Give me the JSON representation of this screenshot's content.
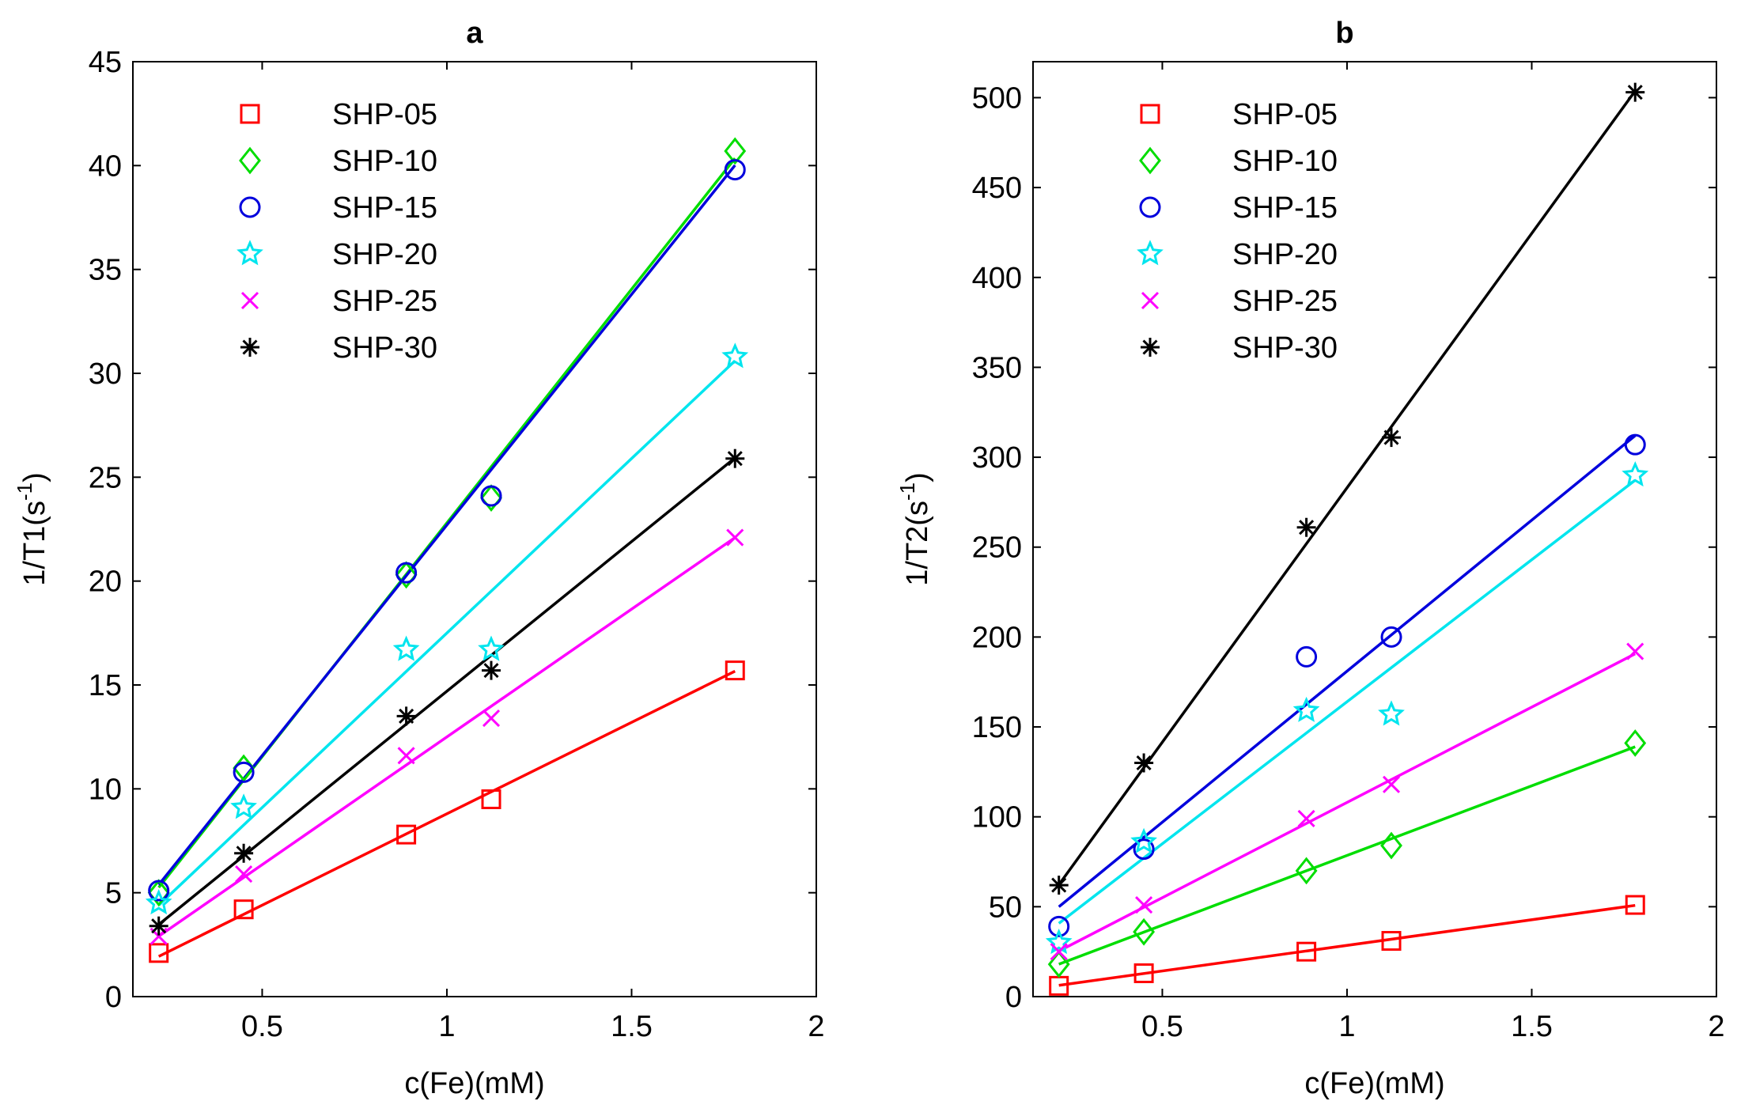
{
  "chart_data": [
    {
      "type": "scatter",
      "panel": "a",
      "title": "a",
      "xlabel": "c(Fe)(mM)",
      "ylabel_main": "1/T1(s",
      "ylabel_sup": "-1",
      "ylabel_end": ")",
      "xlim": [
        0.15,
        2
      ],
      "ylim": [
        0,
        45
      ],
      "xticks": [
        0.5,
        1,
        1.5,
        2
      ],
      "xtick_labels": [
        "0.5",
        "1",
        "1.5",
        "2"
      ],
      "yticks": [
        0,
        5,
        10,
        15,
        20,
        25,
        30,
        35,
        40,
        45
      ],
      "ytick_labels": [
        "0",
        "5",
        "10",
        "15",
        "20",
        "25",
        "30",
        "35",
        "40",
        "45"
      ],
      "legend_position": "top-left",
      "x": [
        0.22,
        0.45,
        0.89,
        1.12,
        1.78
      ],
      "series": [
        {
          "name": "SHP-05",
          "color": "#ff0000",
          "marker": "square",
          "values": [
            2.1,
            4.2,
            7.8,
            9.5,
            15.7
          ],
          "fit": [
            0.0,
            8.8
          ]
        },
        {
          "name": "SHP-10",
          "color": "#00dd00",
          "marker": "diamond",
          "values": [
            5.0,
            11.0,
            20.3,
            24.0,
            40.7
          ],
          "fit": [
            0.3,
            22.5
          ]
        },
        {
          "name": "SHP-15",
          "color": "#0000dd",
          "marker": "circle",
          "values": [
            5.1,
            10.8,
            20.4,
            24.1,
            39.8
          ],
          "fit": [
            0.5,
            22.2
          ]
        },
        {
          "name": "SHP-20",
          "color": "#00e5ee",
          "marker": "star",
          "values": [
            4.5,
            9.1,
            16.7,
            16.7,
            30.8
          ],
          "fit": [
            0.7,
            16.8
          ]
        },
        {
          "name": "SHP-25",
          "color": "#ff00ff",
          "marker": "x",
          "values": [
            2.9,
            5.9,
            11.6,
            13.4,
            22.1
          ],
          "fit": [
            0.2,
            12.3
          ]
        },
        {
          "name": "SHP-30",
          "color": "#000000",
          "marker": "asterisk",
          "values": [
            3.4,
            6.9,
            13.5,
            15.7,
            25.9
          ],
          "fit": [
            0.3,
            14.4
          ]
        }
      ]
    },
    {
      "type": "scatter",
      "panel": "b",
      "title": "b",
      "xlabel": "c(Fe)(mM)",
      "ylabel_main": "1/T2(s",
      "ylabel_sup": "-1",
      "ylabel_end": ")",
      "xlim": [
        0.15,
        2
      ],
      "ylim": [
        0,
        520
      ],
      "xticks": [
        0.5,
        1,
        1.5,
        2
      ],
      "xtick_labels": [
        "0.5",
        "1",
        "1.5",
        "2"
      ],
      "yticks": [
        0,
        50,
        100,
        150,
        200,
        250,
        300,
        350,
        400,
        450,
        500
      ],
      "ytick_labels": [
        "0",
        "50",
        "100",
        "150",
        "200",
        "250",
        "300",
        "350",
        "400",
        "450",
        "500"
      ],
      "legend_position": "top-left",
      "x": [
        0.22,
        0.45,
        0.89,
        1.12,
        1.78
      ],
      "series": [
        {
          "name": "SHP-05",
          "color": "#ff0000",
          "marker": "square",
          "values": [
            6,
            13,
            25,
            31,
            51
          ],
          "fit": [
            0.0,
            28.5
          ]
        },
        {
          "name": "SHP-10",
          "color": "#00dd00",
          "marker": "diamond",
          "values": [
            18,
            36,
            70,
            84,
            141
          ],
          "fit": [
            1.0,
            77.5
          ]
        },
        {
          "name": "SHP-15",
          "color": "#0000dd",
          "marker": "circle",
          "values": [
            39,
            82,
            189,
            200,
            307
          ],
          "fit": [
            13.0,
            168.0
          ]
        },
        {
          "name": "SHP-20",
          "color": "#00e5ee",
          "marker": "star",
          "values": [
            30,
            86,
            159,
            157,
            290
          ],
          "fit": [
            6.0,
            158.0
          ]
        },
        {
          "name": "SHP-25",
          "color": "#ff00ff",
          "marker": "x",
          "values": [
            25,
            51,
            99,
            118,
            192
          ],
          "fit": [
            2.0,
            106.0
          ]
        },
        {
          "name": "SHP-30",
          "color": "#000000",
          "marker": "asterisk",
          "values": [
            62,
            130,
            261,
            311,
            503
          ],
          "fit": [
            0.0,
            283.0
          ]
        }
      ]
    }
  ]
}
